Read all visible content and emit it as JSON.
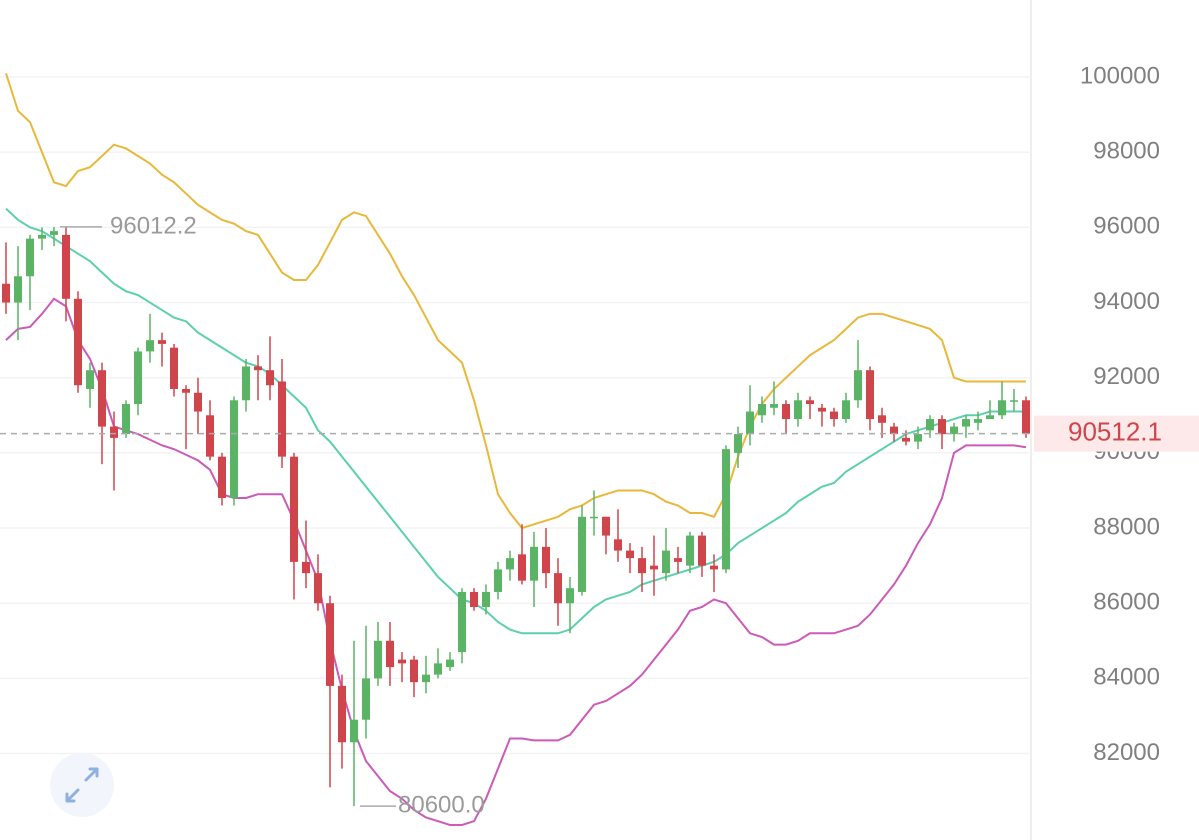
{
  "chart_data": {
    "type": "candlestick",
    "open": [
      94500,
      94000,
      94700,
      95700,
      95800,
      95800,
      94100,
      91700,
      92200,
      90700,
      90500,
      91300,
      92700,
      93000,
      92800,
      91700,
      91600,
      91000,
      89900,
      88800,
      91400,
      92300,
      92200,
      91900,
      89900,
      87100,
      86800,
      86000,
      83800,
      82300,
      82900,
      84000,
      85000,
      84500,
      84500,
      83900,
      84100,
      84300,
      84700,
      86300,
      85900,
      86300,
      86900,
      87300,
      86600,
      87500,
      86800,
      86000,
      86300,
      88300,
      88300,
      87700,
      87400,
      87200,
      87000,
      86800,
      87200,
      87000,
      87800,
      87000,
      86900,
      90000,
      90500,
      91000,
      91200,
      91300,
      90900,
      91400,
      91200,
      91100,
      90900,
      91400,
      92200,
      91000,
      90700,
      90400,
      90300,
      90600,
      90900,
      90500,
      90700,
      90800,
      90900,
      91000,
      91400,
      91400
    ],
    "high": [
      95600,
      95500,
      95800,
      96000,
      96012.2,
      96000,
      94300,
      92400,
      92400,
      91100,
      91400,
      92800,
      93700,
      93200,
      92900,
      91800,
      92000,
      91400,
      90000,
      91500,
      92500,
      92600,
      93100,
      92500,
      90000,
      88200,
      87300,
      86200,
      84100,
      85000,
      85400,
      85500,
      85500,
      84700,
      84600,
      84600,
      84800,
      84700,
      86400,
      86400,
      86500,
      87100,
      87400,
      88100,
      87900,
      88000,
      87200,
      86700,
      88600,
      89000,
      88300,
      88500,
      87600,
      87500,
      87800,
      88000,
      87500,
      87900,
      87900,
      87300,
      90200,
      90700,
      91800,
      91500,
      91900,
      91400,
      91600,
      91500,
      91300,
      91200,
      91600,
      93000,
      92300,
      91200,
      90800,
      90600,
      90700,
      91000,
      91000,
      90800,
      91000,
      91100,
      91400,
      91900,
      91700,
      91500
    ],
    "low": [
      93700,
      93000,
      93800,
      95400,
      95500,
      93500,
      91600,
      91200,
      89700,
      89000,
      90400,
      91000,
      92400,
      92300,
      91500,
      90100,
      90500,
      89800,
      88600,
      88600,
      91100,
      91400,
      91400,
      89600,
      86100,
      86400,
      85800,
      81100,
      81600,
      80600,
      82400,
      83800,
      83800,
      83900,
      83500,
      83600,
      84000,
      84200,
      84400,
      85800,
      85700,
      86100,
      86600,
      86500,
      85900,
      86400,
      85400,
      85200,
      86200,
      87800,
      87300,
      87100,
      86800,
      86300,
      86200,
      86600,
      86800,
      86800,
      86700,
      86300,
      86800,
      89600,
      90200,
      90800,
      91000,
      90500,
      90700,
      90900,
      90700,
      90700,
      90800,
      91200,
      90600,
      90400,
      90300,
      90200,
      90100,
      90400,
      90100,
      90300,
      90400,
      90600,
      90900,
      90900,
      91100,
      90400
    ],
    "close": [
      94000,
      94700,
      95700,
      95800,
      95900,
      94100,
      91800,
      92200,
      90700,
      90400,
      91300,
      92700,
      93000,
      92900,
      91700,
      91600,
      91100,
      89900,
      88800,
      91400,
      92300,
      92200,
      91800,
      89900,
      87100,
      86800,
      86000,
      83800,
      82300,
      82900,
      84000,
      85000,
      84300,
      84400,
      83900,
      84100,
      84400,
      84500,
      86300,
      85900,
      86300,
      86900,
      87200,
      86600,
      87500,
      86800,
      86000,
      86400,
      88300,
      88300,
      87800,
      87400,
      87200,
      86800,
      86900,
      87400,
      87100,
      87800,
      87000,
      86900,
      90100,
      90500,
      91100,
      91300,
      91300,
      90900,
      91400,
      91300,
      91100,
      90900,
      91400,
      92200,
      90900,
      90800,
      90500,
      90300,
      90500,
      90900,
      90500,
      90700,
      90900,
      90900,
      91000,
      91400,
      91400,
      90512.1
    ],
    "up_color": "#5bb466",
    "down_color": "#d0454c",
    "bands": [
      {
        "color": "#e8b83a",
        "values": [
          100100,
          99100,
          98800,
          98000,
          97200,
          97100,
          97500,
          97600,
          97900,
          98200,
          98100,
          97900,
          97700,
          97400,
          97200,
          96900,
          96600,
          96400,
          96200,
          96100,
          95900,
          95800,
          95300,
          94800,
          94600,
          94600,
          95000,
          95600,
          96200,
          96400,
          96300,
          95800,
          95300,
          94700,
          94200,
          93600,
          93000,
          92700,
          92400,
          91400,
          90200,
          88900,
          88400,
          88000,
          88100,
          88200,
          88300,
          88500,
          88600,
          88800,
          88900,
          89000,
          89000,
          89000,
          88900,
          88700,
          88600,
          88400,
          88400,
          88300,
          88900,
          89900,
          90700,
          91300,
          91700,
          92000,
          92300,
          92600,
          92800,
          93000,
          93300,
          93600,
          93700,
          93700,
          93600,
          93500,
          93400,
          93300,
          93000,
          92000,
          91900,
          91900,
          91900,
          91900,
          91900,
          91900
        ]
      },
      {
        "color": "#5ccfae",
        "values": [
          96500,
          96200,
          96000,
          95900,
          95700,
          95500,
          95300,
          95100,
          94800,
          94500,
          94300,
          94200,
          94000,
          93800,
          93600,
          93500,
          93200,
          93000,
          92800,
          92600,
          92400,
          92300,
          92100,
          91800,
          91500,
          91200,
          90600,
          90300,
          89900,
          89500,
          89100,
          88700,
          88300,
          87900,
          87500,
          87100,
          86700,
          86400,
          86100,
          86000,
          85800,
          85500,
          85300,
          85200,
          85200,
          85200,
          85200,
          85300,
          85600,
          85900,
          86100,
          86200,
          86300,
          86500,
          86600,
          86700,
          86800,
          86900,
          87000,
          87100,
          87300,
          87600,
          87800,
          88000,
          88200,
          88400,
          88700,
          88900,
          89100,
          89200,
          89500,
          89700,
          89900,
          90100,
          90300,
          90500,
          90600,
          90700,
          90800,
          90900,
          91000,
          91000,
          91100,
          91100,
          91100,
          91100
        ]
      },
      {
        "color": "#cc5ab8",
        "values": [
          93000,
          93300,
          93350,
          93700,
          94100,
          93900,
          93000,
          92500,
          91700,
          90700,
          90600,
          90500,
          90350,
          90200,
          90100,
          89950,
          89800,
          89550,
          88900,
          88800,
          88800,
          88900,
          88900,
          88900,
          88200,
          87400,
          86600,
          85000,
          83700,
          82600,
          81800,
          81400,
          81000,
          80800,
          80500,
          80300,
          80200,
          80100,
          80100,
          80200,
          80800,
          81600,
          82400,
          82400,
          82350,
          82350,
          82350,
          82500,
          82900,
          83300,
          83400,
          83600,
          83800,
          84100,
          84500,
          84900,
          85300,
          85800,
          85900,
          86100,
          86000,
          85600,
          85200,
          85100,
          84900,
          84900,
          85000,
          85200,
          85200,
          85200,
          85300,
          85400,
          85700,
          86100,
          86500,
          87000,
          87600,
          88100,
          88800,
          90000,
          90200,
          90200,
          90200,
          90200,
          90200,
          90150
        ]
      }
    ],
    "ylim": [
      79700,
      102050
    ],
    "yticks": [
      82000,
      84000,
      86000,
      88000,
      90000,
      92000,
      94000,
      96000,
      98000,
      100000
    ],
    "grid": true,
    "max_label": {
      "value": 96012.2,
      "label": "96012.2"
    },
    "min_label": {
      "value": 80600,
      "label": "80600.0"
    },
    "last_price": {
      "value": 90512.1,
      "label": "90512.1"
    }
  }
}
